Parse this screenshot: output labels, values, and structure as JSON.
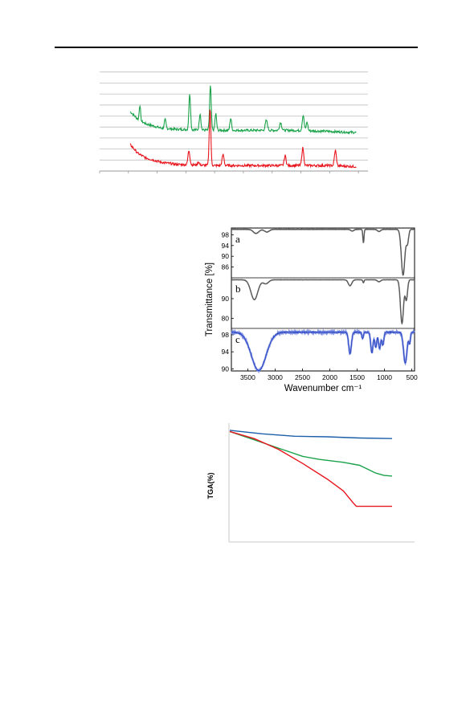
{
  "colors": {
    "green": "#1aa34a",
    "red": "#e8141c",
    "gray": "#5a5a5a",
    "blue_light": "#7f8fe0",
    "blue": "#1f3fbf",
    "tga_blue": "#1b5fa8",
    "grid": "#bfbfbf"
  },
  "chart_data": [
    {
      "type": "line",
      "title": "",
      "xlabel": "",
      "ylabel": "",
      "xlim": [
        10,
        80
      ],
      "ylim": [
        0,
        10
      ],
      "grid": true,
      "series": [
        {
          "color": "#1aa34a",
          "baseline": [
            [
              18,
              5.4
            ],
            [
              20,
              4.7
            ],
            [
              22,
              4.3
            ],
            [
              26,
              3.9
            ],
            [
              30,
              3.8
            ],
            [
              40,
              3.7
            ],
            [
              50,
              3.7
            ],
            [
              60,
              3.7
            ],
            [
              70,
              3.6
            ],
            [
              77,
              3.5
            ]
          ],
          "peaks": [
            [
              20.5,
              1.4,
              0.25
            ],
            [
              27.1,
              0.8,
              0.3
            ],
            [
              33.5,
              3.3,
              0.3
            ],
            [
              36.2,
              1.5,
              0.3
            ],
            [
              38.9,
              4.0,
              0.3
            ],
            [
              40.3,
              1.5,
              0.3
            ],
            [
              44.2,
              1.1,
              0.3
            ],
            [
              53.5,
              0.9,
              0.4
            ],
            [
              57.2,
              0.7,
              0.4
            ],
            [
              63.1,
              1.4,
              0.35
            ],
            [
              64.1,
              0.8,
              0.3
            ]
          ]
        },
        {
          "color": "#e8141c",
          "baseline": [
            [
              18,
              2.4
            ],
            [
              20,
              1.6
            ],
            [
              22,
              1.2
            ],
            [
              26,
              0.8
            ],
            [
              30,
              0.6
            ],
            [
              40,
              0.5
            ],
            [
              50,
              0.5
            ],
            [
              60,
              0.5
            ],
            [
              70,
              0.5
            ],
            [
              77,
              0.4
            ]
          ],
          "peaks": [
            [
              33.3,
              1.3,
              0.35
            ],
            [
              35.8,
              0.3,
              0.3
            ],
            [
              38.8,
              5.2,
              0.3
            ],
            [
              42.2,
              1.0,
              0.35
            ],
            [
              58.4,
              0.9,
              0.35
            ],
            [
              63.0,
              1.6,
              0.35
            ],
            [
              71.5,
              1.4,
              0.35
            ]
          ]
        }
      ]
    },
    {
      "type": "line",
      "xlabel": "Wavenumber cm⁻¹",
      "ylabel": "Transmittance [%]",
      "xlim": [
        3800,
        450
      ],
      "x_ticks": [
        3500,
        3000,
        2500,
        2000,
        1500,
        1000,
        500
      ],
      "panels": [
        {
          "label": "a",
          "color": "#5a5a5a",
          "ylim": [
            82,
            100.5
          ],
          "y_ticks": [
            98,
            94,
            90,
            86
          ],
          "baseline": 100,
          "dips": [
            [
              3350,
              1.5,
              70
            ],
            [
              3150,
              1.0,
              60
            ],
            [
              1590,
              0.6,
              40
            ],
            [
              1385,
              5.0,
              15
            ],
            [
              1100,
              0.8,
              40
            ],
            [
              660,
              17,
              45
            ],
            [
              580,
              5.0,
              30
            ]
          ]
        },
        {
          "label": "b",
          "color": "#5a5a5a",
          "ylim": [
            75,
            100.5
          ],
          "y_ticks": [
            90,
            80
          ],
          "baseline": 99.5,
          "dips": [
            [
              3380,
              10,
              90
            ],
            [
              3170,
              2.0,
              70
            ],
            [
              1630,
              3.0,
              45
            ],
            [
              1385,
              1.5,
              15
            ],
            [
              1100,
              1.0,
              40
            ],
            [
              680,
              22,
              40
            ],
            [
              600,
              10,
              30
            ]
          ]
        },
        {
          "label": "c",
          "ylim": [
            89.5,
            99.5
          ],
          "y_ticks": [
            98,
            94,
            90
          ],
          "baseline": 98.6,
          "dips": [
            [
              3300,
              9.0,
              190
            ],
            [
              1630,
              5.0,
              35
            ],
            [
              1400,
              1.5,
              20
            ],
            [
              1230,
              4.8,
              30
            ],
            [
              1160,
              3.6,
              25
            ],
            [
              1090,
              3.8,
              28
            ],
            [
              1030,
              3.0,
              25
            ],
            [
              620,
              7.2,
              45
            ],
            [
              540,
              2.5,
              20
            ]
          ]
        }
      ]
    },
    {
      "type": "line",
      "title": "",
      "xlabel": "",
      "ylabel": "TGA(%)",
      "xlim": [
        0,
        100
      ],
      "ylim": [
        0,
        100
      ],
      "series": [
        {
          "color": "#1b5fa8",
          "points": [
            [
              0,
              94
            ],
            [
              20,
              91
            ],
            [
              40,
              89
            ],
            [
              60,
              88.5
            ],
            [
              80,
              87.5
            ],
            [
              100,
              87
            ]
          ]
        },
        {
          "color": "#1aa34a",
          "points": [
            [
              0,
              93
            ],
            [
              15,
              86
            ],
            [
              30,
              79
            ],
            [
              45,
              72
            ],
            [
              55,
              69.5
            ],
            [
              70,
              67
            ],
            [
              80,
              64.5
            ],
            [
              90,
              58
            ],
            [
              95,
              56
            ],
            [
              100,
              55.5
            ]
          ]
        },
        {
          "color": "#e8141c",
          "points": [
            [
              0,
              93
            ],
            [
              15,
              87
            ],
            [
              30,
              78
            ],
            [
              45,
              66
            ],
            [
              60,
              53
            ],
            [
              70,
              43
            ],
            [
              76,
              33
            ],
            [
              78,
              30
            ],
            [
              100,
              30
            ]
          ]
        }
      ]
    }
  ]
}
